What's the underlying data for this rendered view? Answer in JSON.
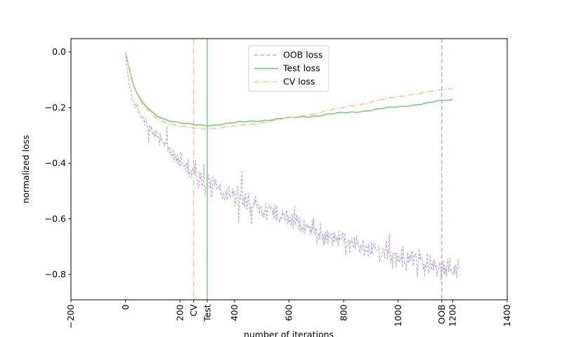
{
  "chart_data": {
    "type": "line",
    "title": "",
    "xlabel": "number of iterations",
    "ylabel": "normalized loss",
    "xlim": [
      -200,
      1400
    ],
    "ylim": [
      -0.891,
      0.048
    ],
    "grid": false,
    "x_major_ticks": [
      -200,
      0,
      200,
      400,
      600,
      800,
      1000,
      1200,
      1400
    ],
    "x_extra_ticks": [
      {
        "label": "CV",
        "x": 250
      },
      {
        "label": "Test",
        "x": 300
      },
      {
        "label": "OOB",
        "x": 1160
      }
    ],
    "x_tick_rotation": 90,
    "y_ticks": [
      0.0,
      -0.2,
      -0.4,
      -0.6,
      -0.8
    ],
    "legend": {
      "position": "upper-center-left",
      "items": [
        "OOB loss",
        "Test loss",
        "CV loss"
      ]
    },
    "series": [
      {
        "name": "OOB loss",
        "color": "#beaed4",
        "style": "dashed",
        "noisy": true,
        "noise": {
          "sigma_min": 0.006,
          "sigma_max": 0.021,
          "seed": 7
        },
        "points": [
          [
            0,
            0
          ],
          [
            5,
            -0.05
          ],
          [
            10,
            -0.09
          ],
          [
            15,
            -0.12
          ],
          [
            20,
            -0.145
          ],
          [
            30,
            -0.18
          ],
          [
            40,
            -0.2
          ],
          [
            50,
            -0.22
          ],
          [
            60,
            -0.235
          ],
          [
            80,
            -0.263
          ],
          [
            100,
            -0.288
          ],
          [
            125,
            -0.315
          ],
          [
            150,
            -0.34
          ],
          [
            175,
            -0.365
          ],
          [
            200,
            -0.39
          ],
          [
            225,
            -0.415
          ],
          [
            250,
            -0.437
          ],
          [
            275,
            -0.457
          ],
          [
            300,
            -0.474
          ],
          [
            350,
            -0.5
          ],
          [
            400,
            -0.522
          ],
          [
            450,
            -0.543
          ],
          [
            500,
            -0.563
          ],
          [
            550,
            -0.583
          ],
          [
            600,
            -0.603
          ],
          [
            650,
            -0.623
          ],
          [
            700,
            -0.643
          ],
          [
            750,
            -0.66
          ],
          [
            800,
            -0.676
          ],
          [
            850,
            -0.691
          ],
          [
            900,
            -0.706
          ],
          [
            950,
            -0.72
          ],
          [
            1000,
            -0.734
          ],
          [
            1050,
            -0.747
          ],
          [
            1100,
            -0.757
          ],
          [
            1150,
            -0.767
          ],
          [
            1200,
            -0.777
          ],
          [
            1225,
            -0.774
          ]
        ]
      },
      {
        "name": "Test loss",
        "color": "#7fc97f",
        "style": "solid",
        "noisy": false,
        "points": [
          [
            0,
            0
          ],
          [
            8,
            -0.035
          ],
          [
            16,
            -0.07
          ],
          [
            25,
            -0.105
          ],
          [
            35,
            -0.135
          ],
          [
            50,
            -0.165
          ],
          [
            65,
            -0.185
          ],
          [
            80,
            -0.2
          ],
          [
            100,
            -0.218
          ],
          [
            125,
            -0.233
          ],
          [
            150,
            -0.243
          ],
          [
            175,
            -0.25
          ],
          [
            200,
            -0.256
          ],
          [
            225,
            -0.259
          ],
          [
            250,
            -0.262
          ],
          [
            275,
            -0.263
          ],
          [
            300,
            -0.263
          ],
          [
            325,
            -0.262
          ],
          [
            350,
            -0.26
          ],
          [
            400,
            -0.255
          ],
          [
            450,
            -0.25
          ],
          [
            500,
            -0.246
          ],
          [
            550,
            -0.242
          ],
          [
            600,
            -0.238
          ],
          [
            650,
            -0.233
          ],
          [
            700,
            -0.229
          ],
          [
            750,
            -0.224
          ],
          [
            800,
            -0.219
          ],
          [
            850,
            -0.214
          ],
          [
            900,
            -0.209
          ],
          [
            950,
            -0.203
          ],
          [
            1000,
            -0.197
          ],
          [
            1050,
            -0.191
          ],
          [
            1100,
            -0.185
          ],
          [
            1130,
            -0.18
          ],
          [
            1160,
            -0.176
          ],
          [
            1185,
            -0.173
          ],
          [
            1200,
            -0.172
          ]
        ]
      },
      {
        "name": "CV loss",
        "color": "#fdc086",
        "style": "dashdot",
        "noisy": false,
        "points": [
          [
            0,
            0
          ],
          [
            8,
            -0.037
          ],
          [
            16,
            -0.073
          ],
          [
            25,
            -0.11
          ],
          [
            35,
            -0.14
          ],
          [
            50,
            -0.17
          ],
          [
            65,
            -0.192
          ],
          [
            80,
            -0.208
          ],
          [
            100,
            -0.226
          ],
          [
            125,
            -0.243
          ],
          [
            150,
            -0.254
          ],
          [
            175,
            -0.262
          ],
          [
            200,
            -0.267
          ],
          [
            225,
            -0.271
          ],
          [
            250,
            -0.274
          ],
          [
            275,
            -0.275
          ],
          [
            300,
            -0.275
          ],
          [
            325,
            -0.274
          ],
          [
            350,
            -0.272
          ],
          [
            400,
            -0.267
          ],
          [
            450,
            -0.261
          ],
          [
            500,
            -0.254
          ],
          [
            550,
            -0.246
          ],
          [
            600,
            -0.238
          ],
          [
            650,
            -0.229
          ],
          [
            700,
            -0.22
          ],
          [
            750,
            -0.21
          ],
          [
            800,
            -0.2
          ],
          [
            850,
            -0.19
          ],
          [
            900,
            -0.18
          ],
          [
            950,
            -0.17
          ],
          [
            1000,
            -0.161
          ],
          [
            1050,
            -0.152
          ],
          [
            1100,
            -0.145
          ],
          [
            1130,
            -0.141
          ],
          [
            1160,
            -0.137
          ],
          [
            1185,
            -0.134
          ],
          [
            1200,
            -0.133
          ]
        ]
      }
    ],
    "vlines": [
      {
        "label": "CV",
        "x": 250,
        "color": "#fdc086",
        "style": "dashdot"
      },
      {
        "label": "Test",
        "x": 300,
        "color": "#7fc97f",
        "style": "solid"
      },
      {
        "label": "OOB",
        "x": 1160,
        "color": "#beaed4",
        "style": "dashed"
      }
    ]
  }
}
